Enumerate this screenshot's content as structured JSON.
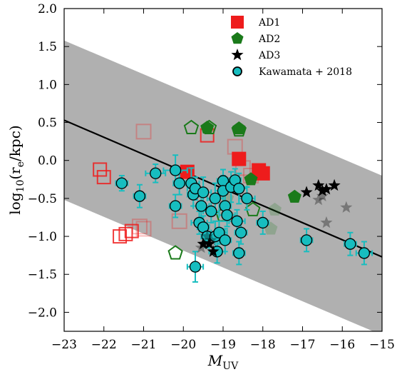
{
  "chart_data": {
    "type": "scatter",
    "title": "",
    "xlabel_main": "M",
    "xlabel_sub": "UV",
    "ylabel": "log",
    "ylabel_sub": "10",
    "ylabel_rest_a": "(r",
    "ylabel_rest_sub": "e",
    "ylabel_rest_b": "/kpc)",
    "xlim": [
      -23,
      -15
    ],
    "ylim": [
      -2.25,
      2.0
    ],
    "x_ticks": [
      -23,
      -22,
      -21,
      -20,
      -19,
      -18,
      -17,
      -16,
      -15
    ],
    "x_tick_labels": [
      "−23",
      "−22",
      "−21",
      "−20",
      "−19",
      "−18",
      "−17",
      "−16",
      "−15"
    ],
    "y_ticks": [
      2.0,
      1.5,
      1.0,
      0.5,
      0.0,
      -0.5,
      -1.0,
      -1.5,
      -2.0
    ],
    "y_tick_labels": [
      "2.0",
      "1.5",
      "1.0",
      "0.5",
      "0.0",
      "−0.5",
      "−1.0",
      "−1.5",
      "−2.0"
    ],
    "grid": false,
    "legend_position": "top-right",
    "colors": {
      "band": "#b0b0b0",
      "ad1": "#ee1c1c",
      "ad2": "#1a7a1a",
      "ad3": "#000000",
      "kawamata": "#17bdbf",
      "kawamata_edge": "#000000",
      "fit_line": "#000000"
    },
    "relation": {
      "line": [
        [
          -23,
          0.53
        ],
        [
          -15,
          -1.27
        ]
      ],
      "band_upper": [
        [
          -23,
          1.58
        ],
        [
          -15,
          -0.2
        ]
      ],
      "band_lower": [
        [
          -23,
          -0.52
        ],
        [
          -15,
          -2.3
        ]
      ]
    },
    "series": [
      {
        "name": "AD1",
        "marker": "square",
        "filled": [
          [
            -19.9,
            -0.15
          ],
          [
            -18.6,
            0.02
          ],
          [
            -18.1,
            -0.13
          ],
          [
            -18.0,
            -0.17
          ]
        ],
        "open": [
          [
            -22.1,
            -0.12
          ],
          [
            -22.0,
            -0.22
          ],
          [
            -21.6,
            -1.0
          ],
          [
            -21.45,
            -0.97
          ],
          [
            -21.3,
            -0.93
          ],
          [
            -21.1,
            -0.87
          ],
          [
            -21.0,
            -0.9
          ],
          [
            -20.1,
            -0.8
          ],
          [
            -19.4,
            0.33
          ],
          [
            -18.7,
            0.18
          ],
          [
            -18.5,
            -0.1
          ],
          [
            -18.3,
            -0.2
          ],
          [
            -21.0,
            0.38
          ]
        ],
        "faded": [
          [
            -21.0,
            0.38
          ],
          [
            -21.1,
            -0.87
          ],
          [
            -21.0,
            -0.9
          ],
          [
            -20.1,
            -0.8
          ],
          [
            -18.7,
            0.18
          ],
          [
            -18.5,
            -0.1
          ],
          [
            -18.3,
            -0.2
          ]
        ]
      },
      {
        "name": "AD2",
        "marker": "pentagon",
        "filled": [
          [
            -19.4,
            0.43
          ],
          [
            -18.6,
            0.42
          ],
          [
            -18.3,
            -0.25
          ],
          [
            -17.2,
            -0.48
          ]
        ],
        "open": [
          [
            -19.8,
            0.43
          ],
          [
            -19.35,
            0.43
          ],
          [
            -20.2,
            -1.22
          ],
          [
            -18.6,
            0.4
          ],
          [
            -18.25,
            -0.65
          ],
          [
            -17.7,
            -0.65
          ],
          [
            -19.0,
            -0.72
          ],
          [
            -18.9,
            -0.72
          ],
          [
            -17.8,
            -0.9
          ],
          [
            -18.9,
            -0.5
          ]
        ],
        "faded": [
          [
            -18.9,
            -0.72
          ],
          [
            -17.8,
            -0.9
          ],
          [
            -18.9,
            -0.5
          ],
          [
            -17.7,
            -0.65
          ]
        ]
      },
      {
        "name": "AD3",
        "marker": "star",
        "filled": [
          [
            -16.9,
            -0.42
          ],
          [
            -16.6,
            -0.33
          ],
          [
            -16.5,
            -0.4
          ],
          [
            -16.4,
            -0.38
          ],
          [
            -16.2,
            -0.33
          ],
          [
            -19.5,
            -1.1
          ],
          [
            -19.35,
            -1.1
          ],
          [
            -19.25,
            -1.2
          ]
        ],
        "faded": [
          [
            -16.6,
            -0.52
          ],
          [
            -16.4,
            -0.82
          ],
          [
            -15.9,
            -0.62
          ],
          [
            -19.4,
            -1.0
          ],
          [
            -19.3,
            -1.05
          ],
          [
            -19.55,
            -1.15
          ],
          [
            -16.5,
            -0.47
          ]
        ]
      },
      {
        "name": "Kawamata + 2018",
        "marker": "circle",
        "points": [
          {
            "x": -21.55,
            "y": -0.3,
            "xerr": 0.15,
            "yerr": 0.1
          },
          {
            "x": -21.1,
            "y": -0.47,
            "xerr": 0.15,
            "yerr": 0.15
          },
          {
            "x": -20.7,
            "y": -0.17,
            "xerr": 0.25,
            "yerr": 0.12
          },
          {
            "x": -20.2,
            "y": -0.13,
            "xerr": 0.3,
            "yerr": 0.2
          },
          {
            "x": -20.1,
            "y": -0.3,
            "xerr": 0.15,
            "yerr": 0.15
          },
          {
            "x": -20.2,
            "y": -0.6,
            "xerr": 0.15,
            "yerr": 0.15
          },
          {
            "x": -19.8,
            "y": -0.3,
            "xerr": 0.2,
            "yerr": 0.2
          },
          {
            "x": -19.75,
            "y": -0.45,
            "xerr": 0.15,
            "yerr": 0.15
          },
          {
            "x": -19.7,
            "y": -0.37,
            "xerr": 0.2,
            "yerr": 0.15
          },
          {
            "x": -19.6,
            "y": -0.82,
            "xerr": 0.2,
            "yerr": 0.15
          },
          {
            "x": -19.55,
            "y": -0.6,
            "xerr": 0.2,
            "yerr": 0.15
          },
          {
            "x": -19.5,
            "y": -0.42,
            "xerr": 0.2,
            "yerr": 0.2
          },
          {
            "x": -19.5,
            "y": -0.88,
            "xerr": 0.15,
            "yerr": 0.15
          },
          {
            "x": -19.4,
            "y": -1.0,
            "xerr": 0.15,
            "yerr": 0.15
          },
          {
            "x": -19.7,
            "y": -1.4,
            "xerr": 0.2,
            "yerr": 0.2
          },
          {
            "x": -19.3,
            "y": -0.67,
            "xerr": 0.2,
            "yerr": 0.15
          },
          {
            "x": -19.2,
            "y": -0.5,
            "xerr": 0.2,
            "yerr": 0.2
          },
          {
            "x": -19.2,
            "y": -1.0,
            "xerr": 0.2,
            "yerr": 0.2
          },
          {
            "x": -19.15,
            "y": -1.2,
            "xerr": 0.2,
            "yerr": 0.15
          },
          {
            "x": -19.1,
            "y": -0.95,
            "xerr": 0.2,
            "yerr": 0.15
          },
          {
            "x": -19.0,
            "y": -0.27,
            "xerr": 0.15,
            "yerr": 0.15
          },
          {
            "x": -19.0,
            "y": -0.4,
            "xerr": 0.2,
            "yerr": 0.2
          },
          {
            "x": -18.95,
            "y": -0.6,
            "xerr": 0.15,
            "yerr": 0.2
          },
          {
            "x": -18.9,
            "y": -0.72,
            "xerr": 0.2,
            "yerr": 0.15
          },
          {
            "x": -18.95,
            "y": -1.05,
            "xerr": 0.15,
            "yerr": 0.15
          },
          {
            "x": -18.8,
            "y": -0.35,
            "xerr": 0.2,
            "yerr": 0.2
          },
          {
            "x": -18.7,
            "y": -0.26,
            "xerr": 0.15,
            "yerr": 0.15
          },
          {
            "x": -18.65,
            "y": -0.8,
            "xerr": 0.2,
            "yerr": 0.15
          },
          {
            "x": -18.6,
            "y": -0.37,
            "xerr": 0.2,
            "yerr": 0.2
          },
          {
            "x": -18.55,
            "y": -0.95,
            "xerr": 0.15,
            "yerr": 0.15
          },
          {
            "x": -18.6,
            "y": -1.22,
            "xerr": 0.15,
            "yerr": 0.15
          },
          {
            "x": -18.4,
            "y": -0.5,
            "xerr": 0.2,
            "yerr": 0.15
          },
          {
            "x": -18.0,
            "y": -0.82,
            "xerr": 0.15,
            "yerr": 0.15
          },
          {
            "x": -16.9,
            "y": -1.05,
            "xerr": 0.15,
            "yerr": 0.15
          },
          {
            "x": -15.8,
            "y": -1.1,
            "xerr": 0.15,
            "yerr": 0.15
          },
          {
            "x": -15.45,
            "y": -1.22,
            "xerr": 0.2,
            "yerr": 0.15
          }
        ]
      }
    ]
  },
  "legend": {
    "items": [
      {
        "key": "ad1",
        "label": "AD1"
      },
      {
        "key": "ad2",
        "label": "AD2"
      },
      {
        "key": "ad3",
        "label": "AD3"
      },
      {
        "key": "kawamata",
        "label": "Kawamata + 2018"
      }
    ]
  }
}
